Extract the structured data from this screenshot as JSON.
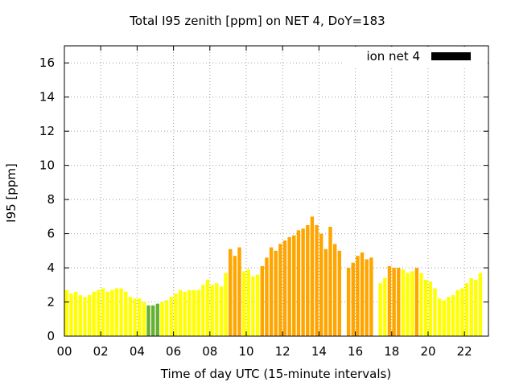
{
  "chart_data": {
    "type": "bar",
    "title": "Total I95 zenith [ppm] on NET 4, DoY=183",
    "xlabel": "Time of day UTC (15-minute intervals)",
    "ylabel": "I95 [ppm]",
    "ylim": [
      0,
      17
    ],
    "yticks": [
      0,
      2,
      4,
      6,
      8,
      10,
      12,
      14,
      16
    ],
    "xticks": [
      "00",
      "02",
      "04",
      "06",
      "08",
      "10",
      "12",
      "14",
      "16",
      "18",
      "20",
      "22"
    ],
    "xtick_hours": [
      0,
      2,
      4,
      6,
      8,
      10,
      12,
      14,
      16,
      18,
      20,
      22
    ],
    "x_interval_hours": 0.25,
    "legend": {
      "label": "ion net 4",
      "position": "top-right",
      "color": "#000000"
    },
    "colors": {
      "green": "#66b032",
      "yellow": "#ffff00",
      "yellow_light": "#f5f538",
      "orange": "#ffa500"
    },
    "grid": true,
    "values": [
      2.7,
      2.5,
      2.6,
      2.4,
      2.3,
      2.4,
      2.6,
      2.7,
      2.8,
      2.6,
      2.7,
      2.8,
      2.8,
      2.6,
      2.3,
      2.2,
      2.2,
      2.0,
      1.8,
      1.8,
      1.9,
      2.0,
      2.1,
      2.3,
      2.5,
      2.7,
      2.6,
      2.7,
      2.7,
      2.7,
      3.0,
      3.3,
      3.0,
      3.1,
      2.9,
      3.7,
      5.1,
      4.7,
      5.2,
      3.8,
      3.9,
      3.5,
      3.6,
      4.1,
      4.6,
      5.2,
      5.0,
      5.4,
      5.6,
      5.8,
      5.9,
      6.2,
      6.3,
      6.5,
      7.0,
      6.5,
      6.0,
      5.1,
      6.4,
      5.4,
      5.0,
      null,
      4.0,
      4.3,
      4.7,
      4.9,
      4.5,
      4.6,
      null,
      3.1,
      3.4,
      4.1,
      4.0,
      4.0,
      3.9,
      3.7,
      3.8,
      4.0,
      3.7,
      3.3,
      3.2,
      2.8,
      2.2,
      2.1,
      2.3,
      2.4,
      2.7,
      2.8,
      3.1,
      3.4,
      3.3,
      3.7
    ],
    "bar_colors": [
      "yellow",
      "yellow",
      "yellow",
      "yellow",
      "yellow",
      "yellow",
      "yellow",
      "yellow",
      "yellow",
      "yellow",
      "yellow",
      "yellow",
      "yellow",
      "yellow",
      "yellow",
      "yellow",
      "yellow",
      "yellow",
      "green",
      "green",
      "green",
      "yellow",
      "yellow",
      "yellow",
      "yellow",
      "yellow",
      "yellow",
      "yellow",
      "yellow",
      "yellow",
      "yellow",
      "yellow",
      "yellow",
      "yellow",
      "yellow",
      "yellow",
      "orange",
      "orange",
      "orange",
      "yellow",
      "yellow",
      "yellow",
      "yellow",
      "orange",
      "orange",
      "orange",
      "orange",
      "orange",
      "orange",
      "orange",
      "orange",
      "orange",
      "orange",
      "orange",
      "orange",
      "orange",
      "orange",
      "orange",
      "orange",
      "orange",
      "orange",
      "orange",
      "orange",
      "orange",
      "orange",
      "orange",
      "orange",
      "orange",
      "orange",
      "yellow",
      "yellow",
      "orange",
      "orange",
      "orange",
      "yellow",
      "yellow",
      "yellow",
      "orange",
      "yellow",
      "yellow",
      "yellow",
      "yellow",
      "yellow",
      "yellow",
      "yellow",
      "yellow",
      "yellow",
      "yellow",
      "yellow",
      "yellow",
      "yellow",
      "yellow"
    ]
  }
}
